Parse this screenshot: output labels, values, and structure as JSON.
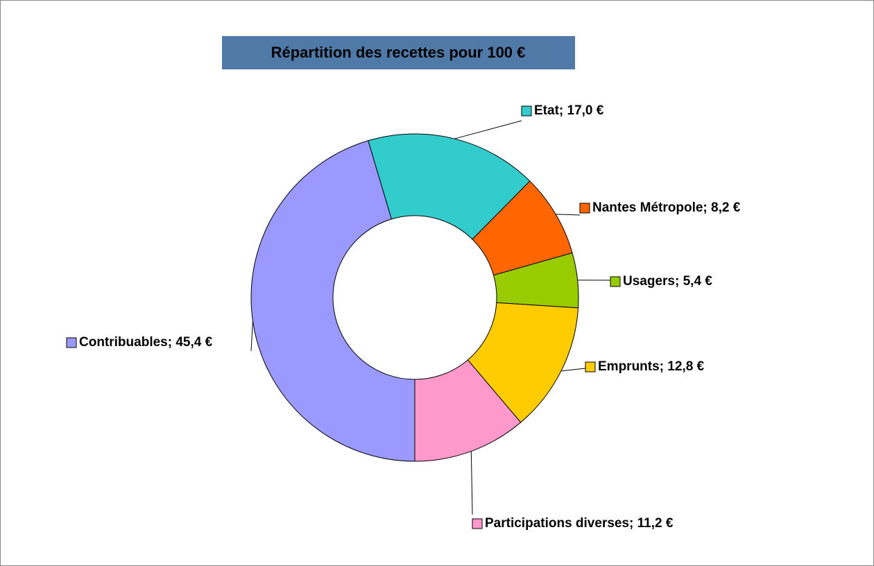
{
  "chart_data": {
    "type": "donut",
    "title": "Répartition des recettes pour 100 €",
    "values": [
      17.0,
      8.2,
      5.4,
      12.8,
      11.2,
      45.4
    ],
    "value_labels": [
      "Etat; 17,0 €",
      "Nantes Métropole; 8,2 €",
      "Usagers; 5,4 €",
      "Emprunts; 12,8 €",
      "Participations diverses; 11,2 €",
      "Contribuables; 45,4 €"
    ],
    "colors": [
      "#33cccc",
      "#ff6600",
      "#99cc00",
      "#ffcc00",
      "#ff99cc",
      "#9999ff"
    ]
  }
}
